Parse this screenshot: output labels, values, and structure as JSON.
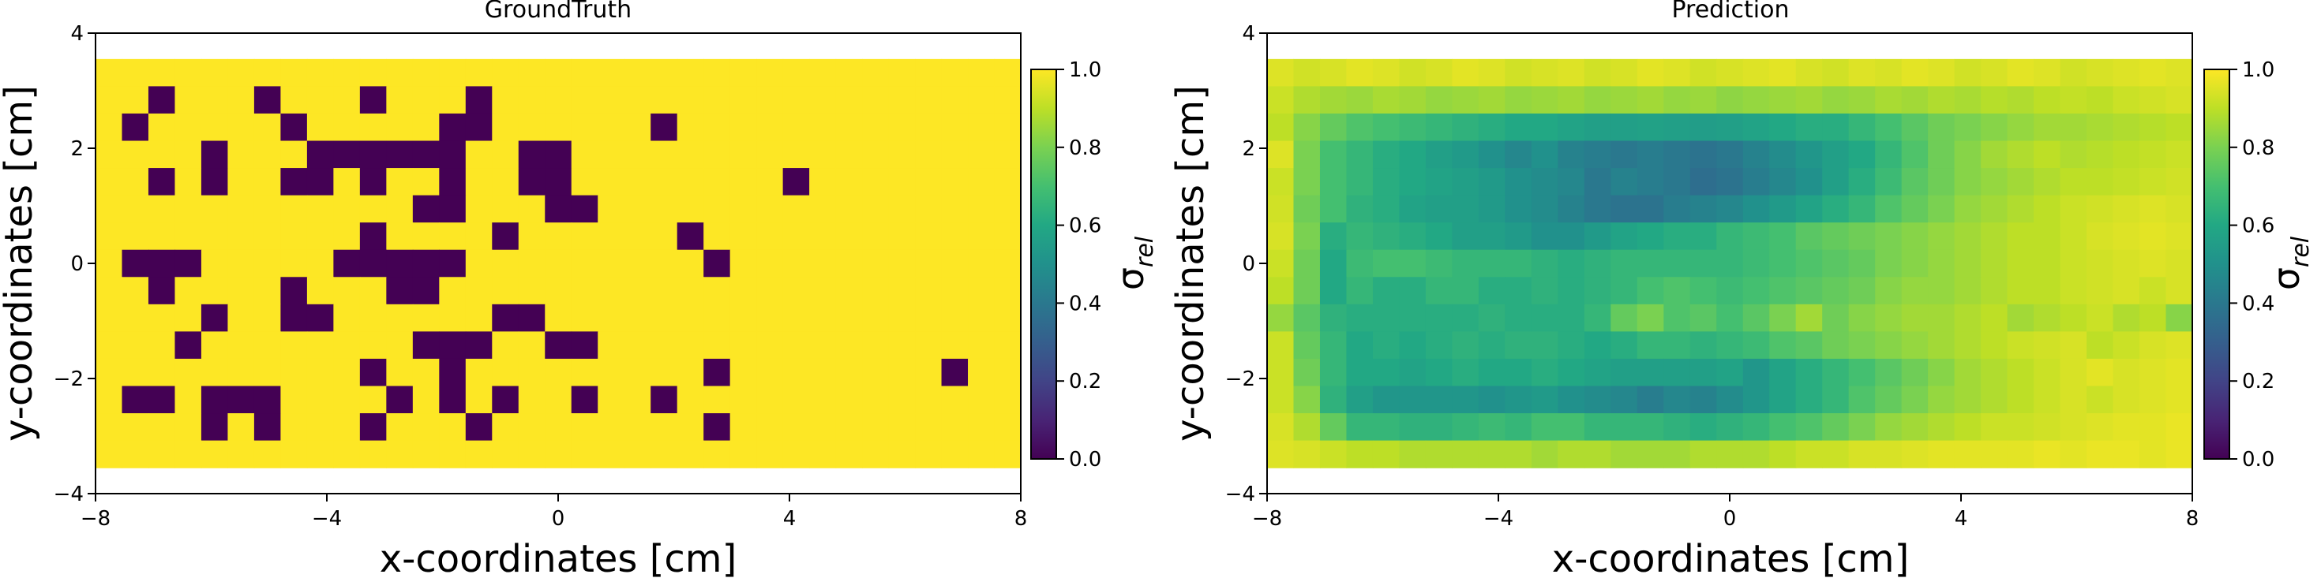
{
  "colorbar_label": "σ",
  "colorbar_label_sub": "rel",
  "colormap": [
    "#440154",
    "#3b528b",
    "#21918c",
    "#5ec962",
    "#fde725"
  ],
  "chart_data": [
    {
      "type": "heatmap",
      "title": "GroundTruth",
      "xlabel": "x-coordinates [cm]",
      "ylabel": "y-coordinates [cm]",
      "xlim": [
        -8,
        8
      ],
      "ylim": [
        -4,
        4
      ],
      "extent_x": [
        -8,
        8
      ],
      "extent_y": [
        -3.55,
        3.55
      ],
      "xticks": [
        -8,
        -4,
        0,
        4,
        8
      ],
      "xtick_labels": [
        "−8",
        "−4",
        "0",
        "4",
        "8"
      ],
      "yticks": [
        -4,
        -2,
        0,
        2,
        4
      ],
      "ytick_labels": [
        "−4",
        "−2",
        "0",
        "2",
        "4"
      ],
      "colorbar_ticks": [
        0.0,
        0.2,
        0.4,
        0.6,
        0.8,
        1.0
      ],
      "colorbar_tick_labels": [
        "0.0",
        "0.2",
        "0.4",
        "0.6",
        "0.8",
        "1.0"
      ],
      "grid": false,
      "values": [
        [
          1,
          1,
          1,
          1,
          1,
          1,
          1,
          1,
          1,
          1,
          1,
          1,
          1,
          1,
          1,
          1,
          1,
          1,
          1,
          1,
          1,
          1,
          1,
          1,
          1,
          1,
          1,
          1,
          1,
          1,
          1,
          1,
          1,
          1,
          1
        ],
        [
          1,
          1,
          0,
          1,
          1,
          1,
          0,
          1,
          1,
          1,
          0,
          1,
          1,
          1,
          0,
          1,
          1,
          1,
          1,
          1,
          1,
          1,
          1,
          1,
          1,
          1,
          1,
          1,
          1,
          1,
          1,
          1,
          1,
          1,
          1
        ],
        [
          1,
          0,
          1,
          1,
          1,
          1,
          1,
          0,
          1,
          1,
          1,
          1,
          1,
          0,
          0,
          1,
          1,
          1,
          1,
          1,
          1,
          0,
          1,
          1,
          1,
          1,
          1,
          1,
          1,
          1,
          1,
          1,
          1,
          1,
          1
        ],
        [
          1,
          1,
          1,
          1,
          0,
          1,
          1,
          1,
          0,
          0,
          0,
          0,
          0,
          0,
          1,
          1,
          0,
          0,
          1,
          1,
          1,
          1,
          1,
          1,
          1,
          1,
          1,
          1,
          1,
          1,
          1,
          1,
          1,
          1,
          1
        ],
        [
          1,
          1,
          0,
          1,
          0,
          1,
          1,
          0,
          0,
          1,
          0,
          1,
          1,
          0,
          1,
          1,
          0,
          0,
          1,
          1,
          1,
          1,
          1,
          1,
          1,
          1,
          0,
          1,
          1,
          1,
          1,
          1,
          1,
          1,
          1
        ],
        [
          1,
          1,
          1,
          1,
          1,
          1,
          1,
          1,
          1,
          1,
          1,
          1,
          0,
          0,
          1,
          1,
          1,
          0,
          0,
          1,
          1,
          1,
          1,
          1,
          1,
          1,
          1,
          1,
          1,
          1,
          1,
          1,
          1,
          1,
          1
        ],
        [
          1,
          1,
          1,
          1,
          1,
          1,
          1,
          1,
          1,
          1,
          0,
          1,
          1,
          1,
          1,
          0,
          1,
          1,
          1,
          1,
          1,
          1,
          0,
          1,
          1,
          1,
          1,
          1,
          1,
          1,
          1,
          1,
          1,
          1,
          1
        ],
        [
          1,
          0,
          0,
          0,
          1,
          1,
          1,
          1,
          1,
          0,
          0,
          0,
          0,
          0,
          1,
          1,
          1,
          1,
          1,
          1,
          1,
          1,
          1,
          0,
          1,
          1,
          1,
          1,
          1,
          1,
          1,
          1,
          1,
          1,
          1
        ],
        [
          1,
          1,
          0,
          1,
          1,
          1,
          1,
          0,
          1,
          1,
          1,
          0,
          0,
          1,
          1,
          1,
          1,
          1,
          1,
          1,
          1,
          1,
          1,
          1,
          1,
          1,
          1,
          1,
          1,
          1,
          1,
          1,
          1,
          1,
          1
        ],
        [
          1,
          1,
          1,
          1,
          0,
          1,
          1,
          0,
          0,
          1,
          1,
          1,
          1,
          1,
          1,
          0,
          0,
          1,
          1,
          1,
          1,
          1,
          1,
          1,
          1,
          1,
          1,
          1,
          1,
          1,
          1,
          1,
          1,
          1,
          1
        ],
        [
          1,
          1,
          1,
          0,
          1,
          1,
          1,
          1,
          1,
          1,
          1,
          1,
          0,
          0,
          0,
          1,
          1,
          0,
          0,
          1,
          1,
          1,
          1,
          1,
          1,
          1,
          1,
          1,
          1,
          1,
          1,
          1,
          1,
          1,
          1
        ],
        [
          1,
          1,
          1,
          1,
          1,
          1,
          1,
          1,
          1,
          1,
          0,
          1,
          1,
          0,
          1,
          1,
          1,
          1,
          1,
          1,
          1,
          1,
          1,
          0,
          1,
          1,
          1,
          1,
          1,
          1,
          1,
          1,
          0,
          1,
          1
        ],
        [
          1,
          0,
          0,
          1,
          0,
          0,
          0,
          1,
          1,
          1,
          1,
          0,
          1,
          0,
          1,
          0,
          1,
          1,
          0,
          1,
          1,
          0,
          1,
          1,
          1,
          1,
          1,
          1,
          1,
          1,
          1,
          1,
          1,
          1,
          1
        ],
        [
          1,
          1,
          1,
          1,
          0,
          1,
          0,
          1,
          1,
          1,
          0,
          1,
          1,
          1,
          0,
          1,
          1,
          1,
          1,
          1,
          1,
          1,
          1,
          0,
          1,
          1,
          1,
          1,
          1,
          1,
          1,
          1,
          1,
          1,
          1
        ],
        [
          1,
          1,
          1,
          1,
          1,
          1,
          1,
          1,
          1,
          1,
          1,
          1,
          1,
          1,
          1,
          1,
          1,
          1,
          1,
          1,
          1,
          1,
          1,
          1,
          1,
          1,
          1,
          1,
          1,
          1,
          1,
          1,
          1,
          1,
          1
        ]
      ]
    },
    {
      "type": "heatmap",
      "title": "Prediction",
      "xlabel": "x-coordinates [cm]",
      "ylabel": "y-coordinates [cm]",
      "xlim": [
        -8,
        8
      ],
      "ylim": [
        -4,
        4
      ],
      "extent_x": [
        -8,
        8
      ],
      "extent_y": [
        -3.55,
        3.55
      ],
      "xticks": [
        -8,
        -4,
        0,
        4,
        8
      ],
      "xtick_labels": [
        "−8",
        "−4",
        "0",
        "4",
        "8"
      ],
      "yticks": [
        -4,
        -2,
        0,
        2,
        4
      ],
      "ytick_labels": [
        "−4",
        "−2",
        "0",
        "2",
        "4"
      ],
      "colorbar_ticks": [
        0.0,
        0.2,
        0.4,
        0.6,
        0.8,
        1.0
      ],
      "colorbar_tick_labels": [
        "0.0",
        "0.2",
        "0.4",
        "0.6",
        "0.8",
        "1.0"
      ],
      "grid": false,
      "values": [
        [
          0.95,
          0.93,
          0.94,
          0.96,
          0.95,
          0.93,
          0.94,
          0.96,
          0.95,
          0.93,
          0.94,
          0.95,
          0.93,
          0.94,
          0.96,
          0.95,
          0.93,
          0.94,
          0.95,
          0.96,
          0.94,
          0.93,
          0.95,
          0.94,
          0.96,
          0.95,
          0.93,
          0.94,
          0.96,
          0.95,
          0.93,
          0.94,
          0.95,
          0.96,
          0.95
        ],
        [
          0.92,
          0.88,
          0.86,
          0.85,
          0.87,
          0.86,
          0.84,
          0.85,
          0.86,
          0.84,
          0.85,
          0.86,
          0.84,
          0.85,
          0.86,
          0.84,
          0.85,
          0.83,
          0.84,
          0.85,
          0.86,
          0.84,
          0.85,
          0.87,
          0.86,
          0.88,
          0.87,
          0.89,
          0.88,
          0.9,
          0.91,
          0.9,
          0.92,
          0.93,
          0.94
        ],
        [
          0.9,
          0.82,
          0.76,
          0.72,
          0.7,
          0.68,
          0.66,
          0.64,
          0.62,
          0.6,
          0.6,
          0.58,
          0.56,
          0.56,
          0.57,
          0.56,
          0.55,
          0.56,
          0.58,
          0.6,
          0.62,
          0.62,
          0.66,
          0.7,
          0.74,
          0.78,
          0.8,
          0.82,
          0.84,
          0.86,
          0.86,
          0.87,
          0.88,
          0.89,
          0.9
        ],
        [
          0.95,
          0.8,
          0.7,
          0.66,
          0.62,
          0.6,
          0.56,
          0.54,
          0.5,
          0.46,
          0.5,
          0.44,
          0.42,
          0.4,
          0.42,
          0.4,
          0.38,
          0.4,
          0.44,
          0.48,
          0.52,
          0.56,
          0.6,
          0.66,
          0.72,
          0.78,
          0.82,
          0.86,
          0.88,
          0.9,
          0.88,
          0.89,
          0.9,
          0.91,
          0.92
        ],
        [
          0.92,
          0.8,
          0.7,
          0.66,
          0.62,
          0.6,
          0.58,
          0.56,
          0.54,
          0.5,
          0.48,
          0.46,
          0.4,
          0.44,
          0.42,
          0.4,
          0.36,
          0.38,
          0.42,
          0.46,
          0.5,
          0.56,
          0.62,
          0.68,
          0.74,
          0.78,
          0.82,
          0.84,
          0.86,
          0.88,
          0.9,
          0.9,
          0.91,
          0.92,
          0.93
        ],
        [
          0.93,
          0.78,
          0.7,
          0.64,
          0.62,
          0.58,
          0.56,
          0.56,
          0.54,
          0.5,
          0.48,
          0.44,
          0.4,
          0.38,
          0.38,
          0.42,
          0.44,
          0.46,
          0.5,
          0.54,
          0.58,
          0.62,
          0.66,
          0.72,
          0.76,
          0.8,
          0.84,
          0.86,
          0.88,
          0.9,
          0.92,
          0.93,
          0.94,
          0.95,
          0.94
        ],
        [
          0.94,
          0.8,
          0.62,
          0.66,
          0.64,
          0.62,
          0.6,
          0.56,
          0.56,
          0.54,
          0.5,
          0.5,
          0.54,
          0.58,
          0.6,
          0.62,
          0.62,
          0.66,
          0.68,
          0.7,
          0.74,
          0.76,
          0.78,
          0.8,
          0.82,
          0.84,
          0.86,
          0.88,
          0.9,
          0.9,
          0.92,
          0.94,
          0.95,
          0.96,
          0.95
        ],
        [
          0.92,
          0.78,
          0.6,
          0.68,
          0.7,
          0.7,
          0.68,
          0.66,
          0.66,
          0.66,
          0.64,
          0.62,
          0.64,
          0.66,
          0.66,
          0.66,
          0.66,
          0.66,
          0.68,
          0.7,
          0.72,
          0.74,
          0.76,
          0.8,
          0.82,
          0.84,
          0.86,
          0.88,
          0.9,
          0.9,
          0.92,
          0.93,
          0.94,
          0.95,
          0.94
        ],
        [
          0.9,
          0.78,
          0.6,
          0.66,
          0.62,
          0.62,
          0.66,
          0.66,
          0.62,
          0.62,
          0.64,
          0.62,
          0.64,
          0.66,
          0.7,
          0.72,
          0.7,
          0.68,
          0.7,
          0.72,
          0.74,
          0.76,
          0.78,
          0.82,
          0.84,
          0.84,
          0.86,
          0.88,
          0.9,
          0.9,
          0.92,
          0.93,
          0.94,
          0.92,
          0.94
        ],
        [
          0.84,
          0.74,
          0.64,
          0.62,
          0.62,
          0.62,
          0.62,
          0.62,
          0.64,
          0.62,
          0.62,
          0.62,
          0.66,
          0.76,
          0.8,
          0.72,
          0.74,
          0.7,
          0.74,
          0.8,
          0.86,
          0.78,
          0.82,
          0.84,
          0.86,
          0.86,
          0.88,
          0.9,
          0.86,
          0.88,
          0.9,
          0.92,
          0.88,
          0.9,
          0.82
        ],
        [
          0.92,
          0.76,
          0.66,
          0.6,
          0.62,
          0.6,
          0.62,
          0.64,
          0.62,
          0.64,
          0.64,
          0.62,
          0.6,
          0.62,
          0.66,
          0.66,
          0.64,
          0.66,
          0.68,
          0.72,
          0.74,
          0.78,
          0.8,
          0.82,
          0.84,
          0.86,
          0.88,
          0.9,
          0.92,
          0.93,
          0.94,
          0.9,
          0.92,
          0.94,
          0.95
        ],
        [
          0.92,
          0.78,
          0.66,
          0.6,
          0.6,
          0.58,
          0.6,
          0.62,
          0.6,
          0.6,
          0.62,
          0.6,
          0.58,
          0.56,
          0.56,
          0.56,
          0.56,
          0.58,
          0.52,
          0.58,
          0.62,
          0.66,
          0.7,
          0.74,
          0.78,
          0.82,
          0.86,
          0.88,
          0.9,
          0.92,
          0.94,
          0.96,
          0.94,
          0.95,
          0.96
        ],
        [
          0.92,
          0.82,
          0.64,
          0.56,
          0.52,
          0.52,
          0.52,
          0.52,
          0.5,
          0.52,
          0.54,
          0.5,
          0.48,
          0.46,
          0.42,
          0.46,
          0.44,
          0.48,
          0.52,
          0.58,
          0.62,
          0.66,
          0.72,
          0.76,
          0.8,
          0.84,
          0.86,
          0.88,
          0.9,
          0.92,
          0.94,
          0.92,
          0.94,
          0.95,
          0.96
        ],
        [
          0.94,
          0.88,
          0.76,
          0.66,
          0.66,
          0.64,
          0.64,
          0.66,
          0.68,
          0.66,
          0.7,
          0.7,
          0.66,
          0.66,
          0.66,
          0.64,
          0.62,
          0.64,
          0.66,
          0.7,
          0.72,
          0.76,
          0.8,
          0.84,
          0.86,
          0.88,
          0.9,
          0.92,
          0.92,
          0.93,
          0.94,
          0.95,
          0.96,
          0.96,
          0.97
        ],
        [
          0.95,
          0.94,
          0.92,
          0.9,
          0.9,
          0.88,
          0.88,
          0.88,
          0.88,
          0.88,
          0.86,
          0.88,
          0.88,
          0.86,
          0.86,
          0.86,
          0.88,
          0.88,
          0.88,
          0.9,
          0.92,
          0.92,
          0.94,
          0.94,
          0.95,
          0.96,
          0.96,
          0.96,
          0.96,
          0.97,
          0.96,
          0.97,
          0.97,
          0.96,
          0.97
        ]
      ]
    }
  ]
}
